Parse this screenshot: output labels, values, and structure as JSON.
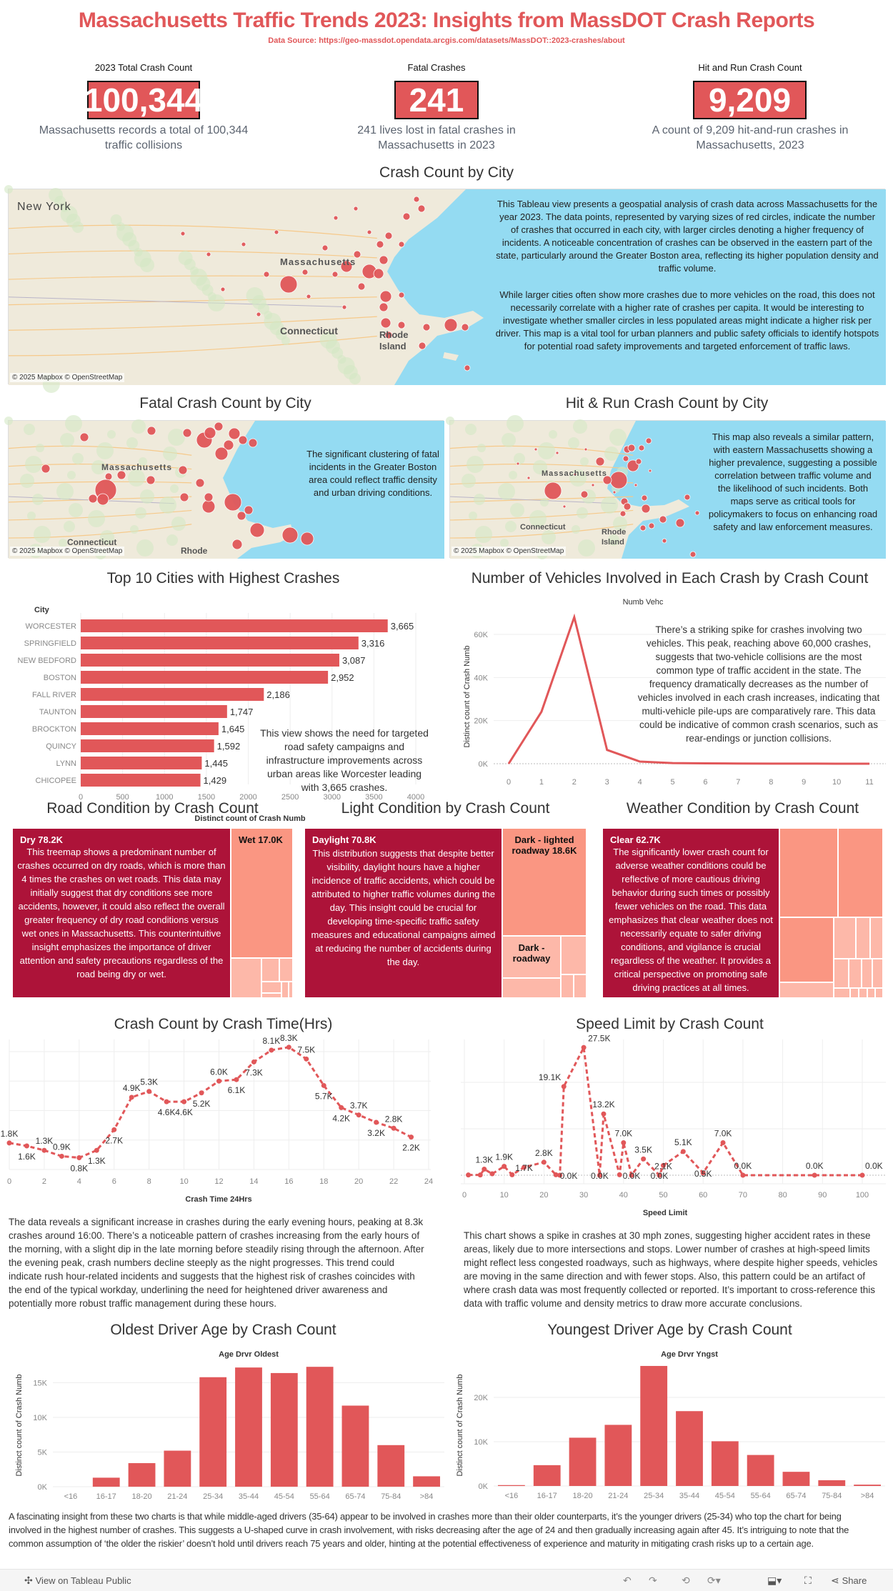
{
  "header": {
    "title": "Massachusetts Traffic Trends 2023: Insights from MassDOT Crash Reports",
    "source": "Data Source: https://geo-massdot.opendata.arcgis.com/datasets/MassDOT::2023-crashes/about"
  },
  "kpis": [
    {
      "label": "2023 Total Crash Count",
      "value": "100,344",
      "desc": "Massachusetts records a total of 100,344 traffic collisions"
    },
    {
      "label": "Fatal Crashes",
      "value": "241",
      "desc": "241 lives lost in fatal crashes in Massachusetts in 2023"
    },
    {
      "label": "Hit and Run Crash Count",
      "value": "9,209",
      "desc": "A count of 9,209 hit-and-run crashes in Massachusetts, 2023"
    }
  ],
  "maps": {
    "credit": "© 2025 Mapbox  © OpenStreetMap",
    "main": {
      "title": "Crash Count by City",
      "labels": {
        "ny": "New York",
        "ma": "Massachusetts",
        "ct": "Connecticut",
        "ri1": "Rhode",
        "ri2": "Island"
      },
      "note1": "This Tableau view presents a geospatial analysis of crash data across Massachusetts for the year 2023. The data points, represented by varying sizes of red circles, indicate the number of crashes that occurred in each city, with larger circles denoting a higher frequency of incidents. A noticeable concentration of crashes can be observed in the eastern part of the state, particularly around the Greater Boston area, reflecting its higher population density and traffic volume.",
      "note2": "While larger cities often show more crashes due to more vehicles on the road, this does not necessarily correlate with a higher rate of crashes per capita. It would be interesting to investigate whether smaller circles in less populated areas might indicate a higher risk per driver. This map is a vital tool for urban planners and public safety officials to identify hotspots for potential road safety improvements and targeted enforcement of traffic laws."
    },
    "fatal": {
      "title": "Fatal Crash Count by City",
      "labels": {
        "ma": "Massachusetts",
        "ct": "Connecticut",
        "ri": "Rhode"
      },
      "note": "The significant clustering of fatal incidents in the Greater Boston area could reflect traffic density and urban driving conditions."
    },
    "hitrun": {
      "title": "Hit & Run Crash Count by City",
      "labels": {
        "ma": "Massachusetts",
        "ct": "Connecticut",
        "ri1": "Rhode",
        "ri2": "Island"
      },
      "note": "This map also reveals a similar pattern, with eastern Massachusetts showing a higher prevalence, suggesting a possible correlation between traffic volume and the likelihood of such incidents. Both maps serve as critical tools for policymakers to focus on enhancing road safety and law enforcement measures."
    },
    "marker_color": "#e15759",
    "land_color": "#efeadb",
    "water_color": "#94dbf2"
  },
  "chart_data": [
    {
      "id": "top10",
      "type": "bar",
      "orientation": "horizontal",
      "title": "Top 10 Cities with Highest Crashes",
      "ylabel": "City",
      "xlabel": "Distinct count of Crash Numb",
      "categories": [
        "WORCESTER",
        "SPRINGFIELD",
        "NEW BEDFORD",
        "BOSTON",
        "FALL RIVER",
        "TAUNTON",
        "BROCKTON",
        "QUINCY",
        "LYNN",
        "CHICOPEE"
      ],
      "values": [
        3665,
        3316,
        3087,
        2952,
        2186,
        1747,
        1645,
        1592,
        1445,
        1429
      ],
      "data_labels": [
        "3,665",
        "3,316",
        "3,087",
        "2,952",
        "2,186",
        "1,747",
        "1,645",
        "1,592",
        "1,445",
        "1,429"
      ],
      "xticks": [
        "0",
        "500",
        "1000",
        "1500",
        "2000",
        "2500",
        "3000",
        "3500",
        "4000"
      ],
      "xlim": [
        0,
        4200
      ],
      "color": "#e15759",
      "annotation": "This view shows the need for targeted road safety campaigns and infrastructure improvements across urban areas like Worcester leading with 3,665 crashes."
    },
    {
      "id": "vehicles",
      "type": "line",
      "title": "Number of Vehicles Involved in Each Crash by Crash Count",
      "xlabel": "Numb Vehc",
      "ylabel": "Distinct count of Crash Numb",
      "x": [
        0,
        1,
        2,
        3,
        4,
        5,
        6,
        7,
        8,
        9,
        10,
        11
      ],
      "values": [
        0,
        24100,
        68000,
        6400,
        1000,
        300,
        150,
        80,
        50,
        30,
        20,
        10
      ],
      "xticks": [
        "0",
        "1",
        "2",
        "3",
        "4",
        "5",
        "6",
        "7",
        "8",
        "9",
        "10",
        "11"
      ],
      "yticks": [
        "0K",
        "20K",
        "40K",
        "60K"
      ],
      "ylim": [
        0,
        72000
      ],
      "color": "#e15759",
      "annotation": "There’s a striking spike for crashes involving two vehicles. This peak, reaching above 60,000 crashes, suggests that two-vehicle collisions are the most common type of traffic accident in the state. The frequency dramatically decreases as the number of vehicles involved in each crash increases, indicating that multi-vehicle pile-ups are comparatively rare. This data could be indicative of common crash scenarios, such as rear-endings or junction collisions."
    },
    {
      "id": "road",
      "type": "treemap",
      "title": "Road Condition by Crash Count",
      "items": [
        {
          "label": "Dry 78.2K",
          "value": 78200
        },
        {
          "label": "Wet 17.0K",
          "value": 17000
        }
      ],
      "annotation": "This treemap shows a predominant number of crashes occurred on dry roads, which is more than 4 times the crashes on wet roads. This data may initially suggest that dry conditions see more accidents, however, it could also reflect the overall greater frequency of dry road conditions versus wet ones in Massachusetts. This counterintuitive insight emphasizes the importance of driver attention and safety precautions regardless of the road being dry or wet."
    },
    {
      "id": "light",
      "type": "treemap",
      "title": "Light Condition by Crash Count",
      "items": [
        {
          "label": "Daylight 70.8K",
          "value": 70800
        },
        {
          "label": "Dark - lighted roadway 18.6K",
          "value": 18600
        },
        {
          "label": "Dark - roadway",
          "value": null
        }
      ],
      "annotation": "This distribution suggests that despite better visibility, daylight hours have a higher incidence of traffic accidents, which could be attributed to higher traffic volumes during the day. This insight could be crucial for developing time-specific traffic safety measures and educational campaigns aimed at reducing the number of accidents during the day."
    },
    {
      "id": "weather",
      "type": "treemap",
      "title": "Weather Condition by Crash Count",
      "items": [
        {
          "label": "Clear 62.7K",
          "value": 62700
        }
      ],
      "annotation": "The significantly lower crash count for adverse weather conditions could be reflective of more cautious driving behavior during such times or possibly fewer vehicles on the road. This data emphasizes that clear weather does not necessarily equate to safer driving conditions, and vigilance is crucial regardless of the weather. It provides a critical perspective on promoting safe driving practices at all times."
    },
    {
      "id": "time",
      "type": "line",
      "title": "Crash Count by Crash Time(Hrs)",
      "xlabel": "Crash Time 24Hrs",
      "line_style": "dashed",
      "x": [
        0,
        1,
        2,
        3,
        4,
        5,
        6,
        7,
        8,
        9,
        10,
        11,
        12,
        13,
        14,
        15,
        16,
        17,
        18,
        19,
        20,
        21,
        22,
        23
      ],
      "values": [
        1800,
        1600,
        1300,
        900,
        800,
        1300,
        2700,
        4900,
        5300,
        4600,
        4600,
        5200,
        6000,
        6100,
        7300,
        8100,
        8300,
        7500,
        5700,
        4200,
        3700,
        3200,
        2800,
        2200
      ],
      "data_labels": [
        "1.8K",
        "1.6K",
        "1.3K",
        "0.9K",
        "0.8K",
        "1.3K",
        "2.7K",
        "4.9K",
        "5.3K",
        "4.6K",
        "4.6K",
        "5.2K",
        "6.0K",
        "6.1K",
        "7.3K",
        "8.1K",
        "8.3K",
        "7.5K",
        "5.7K",
        "4.2K",
        "3.7K",
        "3.2K",
        "2.8K",
        "2.2K"
      ],
      "xticks": [
        "0",
        "2",
        "4",
        "6",
        "8",
        "10",
        "12",
        "14",
        "16",
        "18",
        "20",
        "22",
        "24"
      ],
      "xlim": [
        0,
        24
      ],
      "ylim": [
        0,
        8500
      ],
      "grid": true,
      "color": "#e15759",
      "annotation": "The data reveals a significant increase in crashes during the early evening hours, peaking at 8.3k crashes around 16:00. There’s a noticeable pattern of crashes increasing from the early hours of the morning, with a slight dip in the late morning before steadily rising through the afternoon. After the evening peak, crash numbers decline steeply as the night progresses. This trend could indicate rush hour-related incidents and suggests that the highest risk of crashes coincides with the end of the typical workday, underlining the need for heightened driver awareness and potentially more robust traffic management during these hours."
    },
    {
      "id": "speed",
      "type": "line",
      "title": "Speed Limit by Crash Count",
      "xlabel": "Speed Limit",
      "line_style": "dashed",
      "points": [
        [
          1,
          50,
          ""
        ],
        [
          4,
          50,
          ""
        ],
        [
          5,
          1300,
          "1.3K"
        ],
        [
          7,
          300,
          ""
        ],
        [
          10,
          1900,
          "1.9K"
        ],
        [
          12,
          100,
          ""
        ],
        [
          15,
          1700,
          "1.7K"
        ],
        [
          20,
          2800,
          "2.8K"
        ],
        [
          23,
          100,
          ""
        ],
        [
          24,
          0,
          "0.0K"
        ],
        [
          25,
          19100,
          "19.1K"
        ],
        [
          30,
          27500,
          "27.5K"
        ],
        [
          34,
          0,
          "0.0K"
        ],
        [
          35,
          13200,
          "13.2K"
        ],
        [
          39,
          100,
          ""
        ],
        [
          40,
          7000,
          "7.0K"
        ],
        [
          42,
          0,
          "0.0K"
        ],
        [
          45,
          3500,
          "3.5K"
        ],
        [
          49,
          0,
          "0.0K"
        ],
        [
          50,
          2100,
          "2.1K"
        ],
        [
          55,
          5100,
          "5.1K"
        ],
        [
          60,
          500,
          "0.5K"
        ],
        [
          65,
          7000,
          "7.0K"
        ],
        [
          70,
          0,
          "0.0K"
        ],
        [
          88,
          0,
          "0.0K"
        ],
        [
          100,
          0,
          "0.0K"
        ]
      ],
      "xticks": [
        "0",
        "10",
        "20",
        "30",
        "40",
        "50",
        "60",
        "70",
        "80",
        "90",
        "100"
      ],
      "xlim": [
        0,
        100
      ],
      "ylim": [
        0,
        29000
      ],
      "grid": true,
      "color": "#e15759",
      "annotation": "This chart shows a spike in crashes at 30 mph zones, suggesting higher accident rates in these areas, likely due to more intersections and stops. Lower number of crashes at high-speed limits might reflect less congested roadways, such as highways, where despite higher speeds, vehicles are moving in the same direction and with fewer stops. Also, this pattern could be an artifact of where crash data was most frequently collected or reported.  It’s important to cross-reference this data with traffic volume and density metrics to draw more accurate conclusions."
    },
    {
      "id": "oldest",
      "type": "bar",
      "title": "Oldest Driver Age by Crash Count",
      "xlabel": "Age Drvr Oldest",
      "ylabel": "Distinct count of Crash Numb",
      "categories": [
        "<16",
        "16-17",
        "18-20",
        "21-24",
        "25-34",
        "35-44",
        "45-54",
        "55-64",
        "65-74",
        "75-84",
        ">84"
      ],
      "values": [
        0,
        1300,
        3400,
        5200,
        15800,
        17200,
        16400,
        17300,
        11700,
        6000,
        1500
      ],
      "yticks": [
        "0K",
        "5K",
        "10K",
        "15K"
      ],
      "ylim": [
        0,
        18000
      ],
      "color": "#e15759"
    },
    {
      "id": "youngest",
      "type": "bar",
      "title": "Youngest Driver Age by Crash Count",
      "xlabel": "Age Drvr Yngst",
      "ylabel": "Distinct count of Crash Numb",
      "categories": [
        "<16",
        "16-17",
        "18-20",
        "21-24",
        "25-34",
        "35-44",
        "45-54",
        "55-64",
        "65-74",
        "75-84",
        ">84"
      ],
      "values": [
        200,
        4700,
        10900,
        13800,
        27100,
        16900,
        10100,
        7000,
        3200,
        1300,
        300
      ],
      "yticks": [
        "0K",
        "10K",
        "20K"
      ],
      "ylim": [
        0,
        28000
      ],
      "color": "#e15759"
    }
  ],
  "age_annotation": "A fascinating insight from these two charts is that while middle-aged drivers (35-64) appear to be involved in crashes more than their older counterparts, it’s the younger drivers (25-34) who top the chart for being involved in the highest number of crashes. This suggests a U-shaped curve in crash involvement, with risks decreasing after the age of 24 and then gradually increasing again after 45. It’s intriguing to note that the common assumption of ‘the older the riskier’ doesn’t hold until drivers reach 75 years and older, hinting at the potential effectiveness of experience and maturity in mitigating crash risks up to a certain age.",
  "footer": {
    "view_label": "View on Tableau Public",
    "share_label": "Share",
    "icons": [
      "tableau-logo-icon",
      "undo-icon",
      "redo-icon",
      "revert-icon",
      "refresh-icon",
      "download-icon",
      "fullscreen-icon",
      "share-icon"
    ]
  }
}
